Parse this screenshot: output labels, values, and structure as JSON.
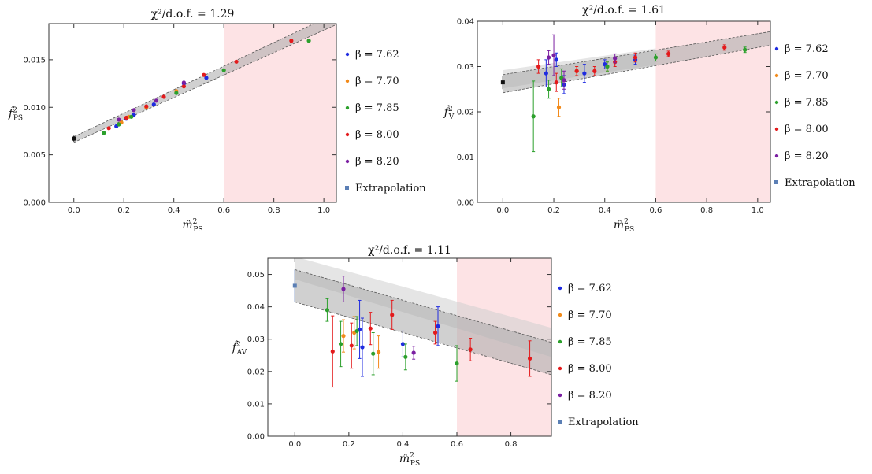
{
  "chart_data": [
    {
      "type": "scatter",
      "title": "χ²/d.o.f. = 1.29",
      "ylabel": "f̂²PS",
      "ylabel_base": "f̂",
      "ylabel_sup": "2",
      "ylabel_sub": "PS",
      "xlabel": "m̂²PS",
      "xlabel_base": "m̂",
      "xlabel_sup": "2",
      "xlabel_sub": "PS",
      "xlim": [
        -0.1,
        1.05
      ],
      "ylim": [
        0,
        0.0188
      ],
      "xticks": [
        "0.0",
        "0.2",
        "0.4",
        "0.6",
        "0.8",
        "1.0"
      ],
      "yticks": [
        "0.000",
        "0.005",
        "0.010",
        "0.015"
      ],
      "shaded_region_x": [
        0.6,
        1.05
      ],
      "fit_band": {
        "x": [
          0,
          1.05
        ],
        "center": [
          0.0066,
          0.0193
        ],
        "halfwidth": [
          0.0003,
          0.0006
        ]
      },
      "series": [
        {
          "name": "β = 7.62",
          "color": "#1f2be0",
          "points": [
            [
              0.17,
              0.008
            ],
            [
              0.21,
              0.0088
            ],
            [
              0.24,
              0.0092
            ],
            [
              0.32,
              0.0103
            ],
            [
              0.44,
              0.0125
            ],
            [
              0.53,
              0.0131
            ]
          ]
        },
        {
          "name": "β = 7.70",
          "color": "#f28a1a",
          "points": [
            [
              0.19,
              0.0084
            ],
            [
              0.22,
              0.009
            ],
            [
              0.29,
              0.01
            ],
            [
              0.41,
              0.0117
            ]
          ]
        },
        {
          "name": "β = 7.85",
          "color": "#2ca02c",
          "points": [
            [
              0.12,
              0.0073
            ],
            [
              0.18,
              0.0082
            ],
            [
              0.23,
              0.009
            ],
            [
              0.41,
              0.0115
            ],
            [
              0.6,
              0.0139
            ],
            [
              0.94,
              0.017
            ]
          ]
        },
        {
          "name": "β = 8.00",
          "color": "#e31a1c",
          "points": [
            [
              0.14,
              0.0078
            ],
            [
              0.21,
              0.0089
            ],
            [
              0.29,
              0.0101
            ],
            [
              0.36,
              0.0111
            ],
            [
              0.44,
              0.0122
            ],
            [
              0.52,
              0.0134
            ],
            [
              0.65,
              0.0148
            ],
            [
              0.87,
              0.017
            ]
          ]
        },
        {
          "name": "β = 8.20",
          "color": "#7b1fa2",
          "points": [
            [
              0.18,
              0.0087
            ],
            [
              0.24,
              0.0097
            ],
            [
              0.33,
              0.0107
            ],
            [
              0.44,
              0.0126
            ]
          ]
        }
      ],
      "extrapolation": {
        "name": "Extrapolation",
        "x": 0,
        "y": 0.0067,
        "err": 0.0003,
        "color": "#111111"
      }
    },
    {
      "type": "scatter",
      "title": "χ²/d.o.f. = 1.61",
      "ylabel": "f̂²V",
      "ylabel_base": "f̂",
      "ylabel_sup": "2",
      "ylabel_sub": "V",
      "xlabel": "m̂²PS",
      "xlabel_base": "m̂",
      "xlabel_sup": "2",
      "xlabel_sub": "PS",
      "xlim": [
        -0.1,
        1.05
      ],
      "ylim": [
        0,
        0.04
      ],
      "xticks": [
        "0.0",
        "0.2",
        "0.4",
        "0.6",
        "0.8",
        "1.0"
      ],
      "yticks": [
        "0.00",
        "0.01",
        "0.02",
        "0.03",
        "0.04"
      ],
      "shaded_region_x": [
        0.6,
        1.05
      ],
      "fit_band": {
        "x": [
          0,
          1.05
        ],
        "center": [
          0.0262,
          0.0362
        ],
        "halfwidth": [
          0.002,
          0.0015
        ]
      },
      "fit_band_wide": {
        "x": [
          0,
          0.6
        ],
        "center": [
          0.0272,
          0.0322
        ],
        "halfwidth": [
          0.002,
          0.0018
        ]
      },
      "series": [
        {
          "name": "β = 7.62",
          "color": "#1f2be0",
          "points": [
            [
              0.17,
              0.0285,
              0.003
            ],
            [
              0.21,
              0.0315,
              0.0015
            ],
            [
              0.24,
              0.026,
              0.002
            ],
            [
              0.32,
              0.0285,
              0.002
            ],
            [
              0.4,
              0.0305,
              0.001
            ],
            [
              0.52,
              0.0315,
              0.001
            ]
          ]
        },
        {
          "name": "β = 7.70",
          "color": "#f28a1a",
          "points": [
            [
              0.22,
              0.021,
              0.002
            ],
            [
              0.29,
              0.029,
              0.001
            ],
            [
              0.41,
              0.03,
              0.001
            ]
          ]
        },
        {
          "name": "β = 7.85",
          "color": "#2ca02c",
          "points": [
            [
              0.12,
              0.019,
              0.0078
            ],
            [
              0.18,
              0.025,
              0.002
            ],
            [
              0.23,
              0.0275,
              0.002
            ],
            [
              0.41,
              0.03,
              0.001
            ],
            [
              0.6,
              0.032,
              0.0008
            ],
            [
              0.95,
              0.0337,
              0.0006
            ]
          ]
        },
        {
          "name": "β = 8.00",
          "color": "#e31a1c",
          "points": [
            [
              0.14,
              0.03,
              0.0015
            ],
            [
              0.21,
              0.0265,
              0.002
            ],
            [
              0.29,
              0.029,
              0.001
            ],
            [
              0.36,
              0.029,
              0.001
            ],
            [
              0.44,
              0.031,
              0.001
            ],
            [
              0.52,
              0.032,
              0.001
            ],
            [
              0.65,
              0.0328,
              0.0006
            ],
            [
              0.87,
              0.0342,
              0.0006
            ]
          ]
        },
        {
          "name": "β = 8.20",
          "color": "#7b1fa2",
          "points": [
            [
              0.18,
              0.032,
              0.0015
            ],
            [
              0.24,
              0.027,
              0.002
            ],
            [
              0.2,
              0.0325,
              0.0045
            ],
            [
              0.44,
              0.0318,
              0.001
            ]
          ]
        }
      ],
      "extrapolation": {
        "name": "Extrapolation",
        "x": 0,
        "y": 0.0265,
        "err": 0.0015,
        "color": "#111111"
      }
    },
    {
      "type": "scatter",
      "title": "χ²/d.o.f. = 1.11",
      "ylabel": "f̂²AV",
      "ylabel_base": "f̂",
      "ylabel_sup": "2",
      "ylabel_sub": "AV",
      "xlabel": "m̂²PS",
      "xlabel_base": "m̂",
      "xlabel_sup": "2",
      "xlabel_sub": "PS",
      "xlim": [
        -0.1,
        0.95
      ],
      "ylim": [
        0,
        0.055
      ],
      "xticks": [
        "0.0",
        "0.2",
        "0.4",
        "0.6",
        "0.8"
      ],
      "yticks": [
        "0.00",
        "0.01",
        "0.02",
        "0.03",
        "0.04",
        "0.05"
      ],
      "shaded_region_x": [
        0.6,
        0.95
      ],
      "fit_band": {
        "x": [
          0,
          0.95
        ],
        "center": [
          0.0465,
          0.024
        ],
        "halfwidth": [
          0.005,
          0.005
        ]
      },
      "fit_band_wide": {
        "x": [
          0,
          0.95
        ],
        "center": [
          0.052,
          0.029
        ],
        "halfwidth": [
          0.0035,
          0.0045
        ]
      },
      "series": [
        {
          "name": "β = 7.62",
          "color": "#1f2be0",
          "points": [
            [
              0.24,
              0.033,
              0.009
            ],
            [
              0.25,
              0.0275,
              0.009
            ],
            [
              0.4,
              0.0285,
              0.004
            ],
            [
              0.53,
              0.034,
              0.006
            ]
          ]
        },
        {
          "name": "β = 7.70",
          "color": "#f28a1a",
          "points": [
            [
              0.18,
              0.031,
              0.005
            ],
            [
              0.22,
              0.032,
              0.005
            ],
            [
              0.31,
              0.026,
              0.005
            ]
          ]
        },
        {
          "name": "β = 7.85",
          "color": "#2ca02c",
          "points": [
            [
              0.12,
              0.039,
              0.0035
            ],
            [
              0.17,
              0.0285,
              0.007
            ],
            [
              0.23,
              0.0325,
              0.0045
            ],
            [
              0.29,
              0.0255,
              0.0065
            ],
            [
              0.41,
              0.0245,
              0.004
            ],
            [
              0.6,
              0.0225,
              0.0055
            ]
          ]
        },
        {
          "name": "β = 8.00",
          "color": "#e31a1c",
          "points": [
            [
              0.14,
              0.0262,
              0.011
            ],
            [
              0.21,
              0.028,
              0.007
            ],
            [
              0.28,
              0.0333,
              0.005
            ],
            [
              0.36,
              0.0375,
              0.0045
            ],
            [
              0.52,
              0.032,
              0.0035
            ],
            [
              0.65,
              0.0268,
              0.0035
            ],
            [
              0.87,
              0.024,
              0.0055
            ]
          ]
        },
        {
          "name": "β = 8.20",
          "color": "#7b1fa2",
          "points": [
            [
              0.18,
              0.0455,
              0.004
            ],
            [
              0.44,
              0.0258,
              0.002
            ]
          ]
        }
      ],
      "extrapolation": {
        "name": "Extrapolation",
        "x": 0,
        "y": 0.0465,
        "err": 0.005,
        "color": "#5b7fb5"
      }
    }
  ],
  "panels_layout_hint": "three panels"
}
